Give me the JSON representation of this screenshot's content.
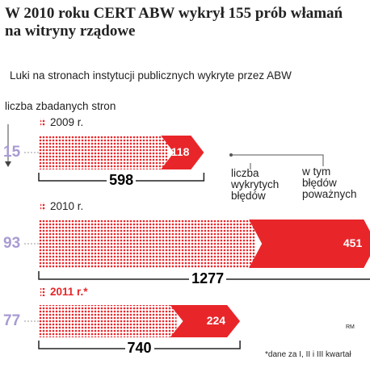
{
  "chart_data": {
    "type": "bar",
    "title": "W 2010 roku CERT ABW wykrył 155 prób włamań na witryny rządowe",
    "subtitle": "Luki na stronach instytucji publicznych wykryte przez ABW",
    "categories": [
      "2009 r.",
      "2010 r.",
      "2011 r.*"
    ],
    "pages": {
      "name": "liczba zbadanych stron",
      "values": [
        15,
        93,
        77
      ],
      "color": "#a89bd3"
    },
    "series": [
      {
        "name": "liczba wykrytych błędów",
        "color": "#f28b8b",
        "values": [
          598,
          1277,
          740
        ]
      },
      {
        "name": "w tym błędów poważnych",
        "color": "#e8262a",
        "values": [
          118,
          451,
          224
        ]
      }
    ],
    "credit": "RM",
    "note": "*dane za I, II i III kwartał"
  }
}
